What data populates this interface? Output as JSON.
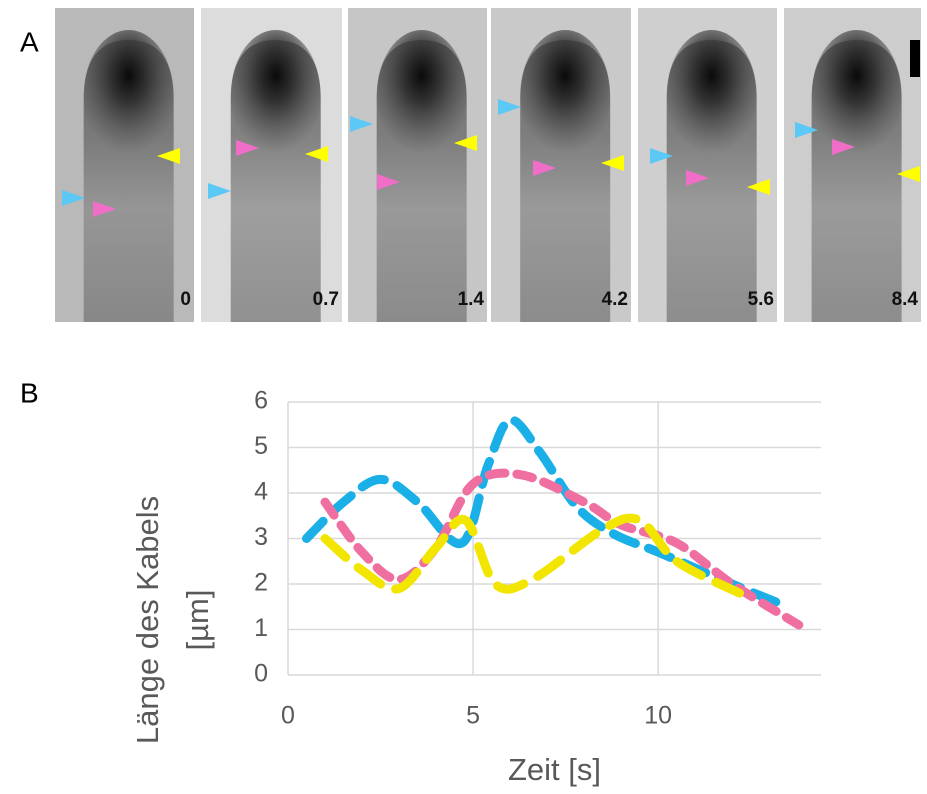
{
  "panel_labels": [
    "A",
    "B"
  ],
  "frame_times": [
    0,
    0.7,
    1.4,
    4.2,
    5.6,
    8.4
  ],
  "chart_data": {
    "type": "line",
    "xlabel": "Zeit [s]",
    "ylabel": [
      "Länge des Kabels",
      "[µm]"
    ],
    "xlim": [
      0,
      14.4
    ],
    "xticks": [
      0,
      5,
      10
    ],
    "ylim": [
      0,
      6
    ],
    "yticks": [
      0,
      1,
      2,
      3,
      4,
      5,
      6
    ],
    "grid": true,
    "series": [
      {
        "color": "#1aafe6",
        "x": [
          0.5,
          1.5,
          2.5,
          3.5,
          4.7,
          5.4,
          6.0,
          6.8,
          7.8,
          8.8,
          10.0,
          12.0,
          13.5
        ],
        "values": [
          3.0,
          3.8,
          4.3,
          3.8,
          2.9,
          4.6,
          5.6,
          4.9,
          3.7,
          3.1,
          2.7,
          2.0,
          1.5
        ]
      },
      {
        "color": "#ef6fa0",
        "x": [
          1.0,
          2.0,
          3.0,
          4.0,
          5.0,
          6.3,
          8.0,
          9.0,
          10.5,
          12.0,
          13.8
        ],
        "values": [
          3.8,
          2.7,
          2.1,
          2.8,
          4.2,
          4.4,
          3.8,
          3.3,
          2.9,
          2.0,
          1.1
        ]
      },
      {
        "color": "#f2e600",
        "x": [
          1.0,
          2.0,
          3.0,
          4.0,
          4.8,
          5.6,
          6.6,
          8.5,
          9.5,
          10.5,
          12.2
        ],
        "values": [
          3.0,
          2.3,
          1.9,
          2.8,
          3.4,
          2.0,
          2.1,
          3.2,
          3.4,
          2.5,
          1.8
        ]
      }
    ]
  }
}
